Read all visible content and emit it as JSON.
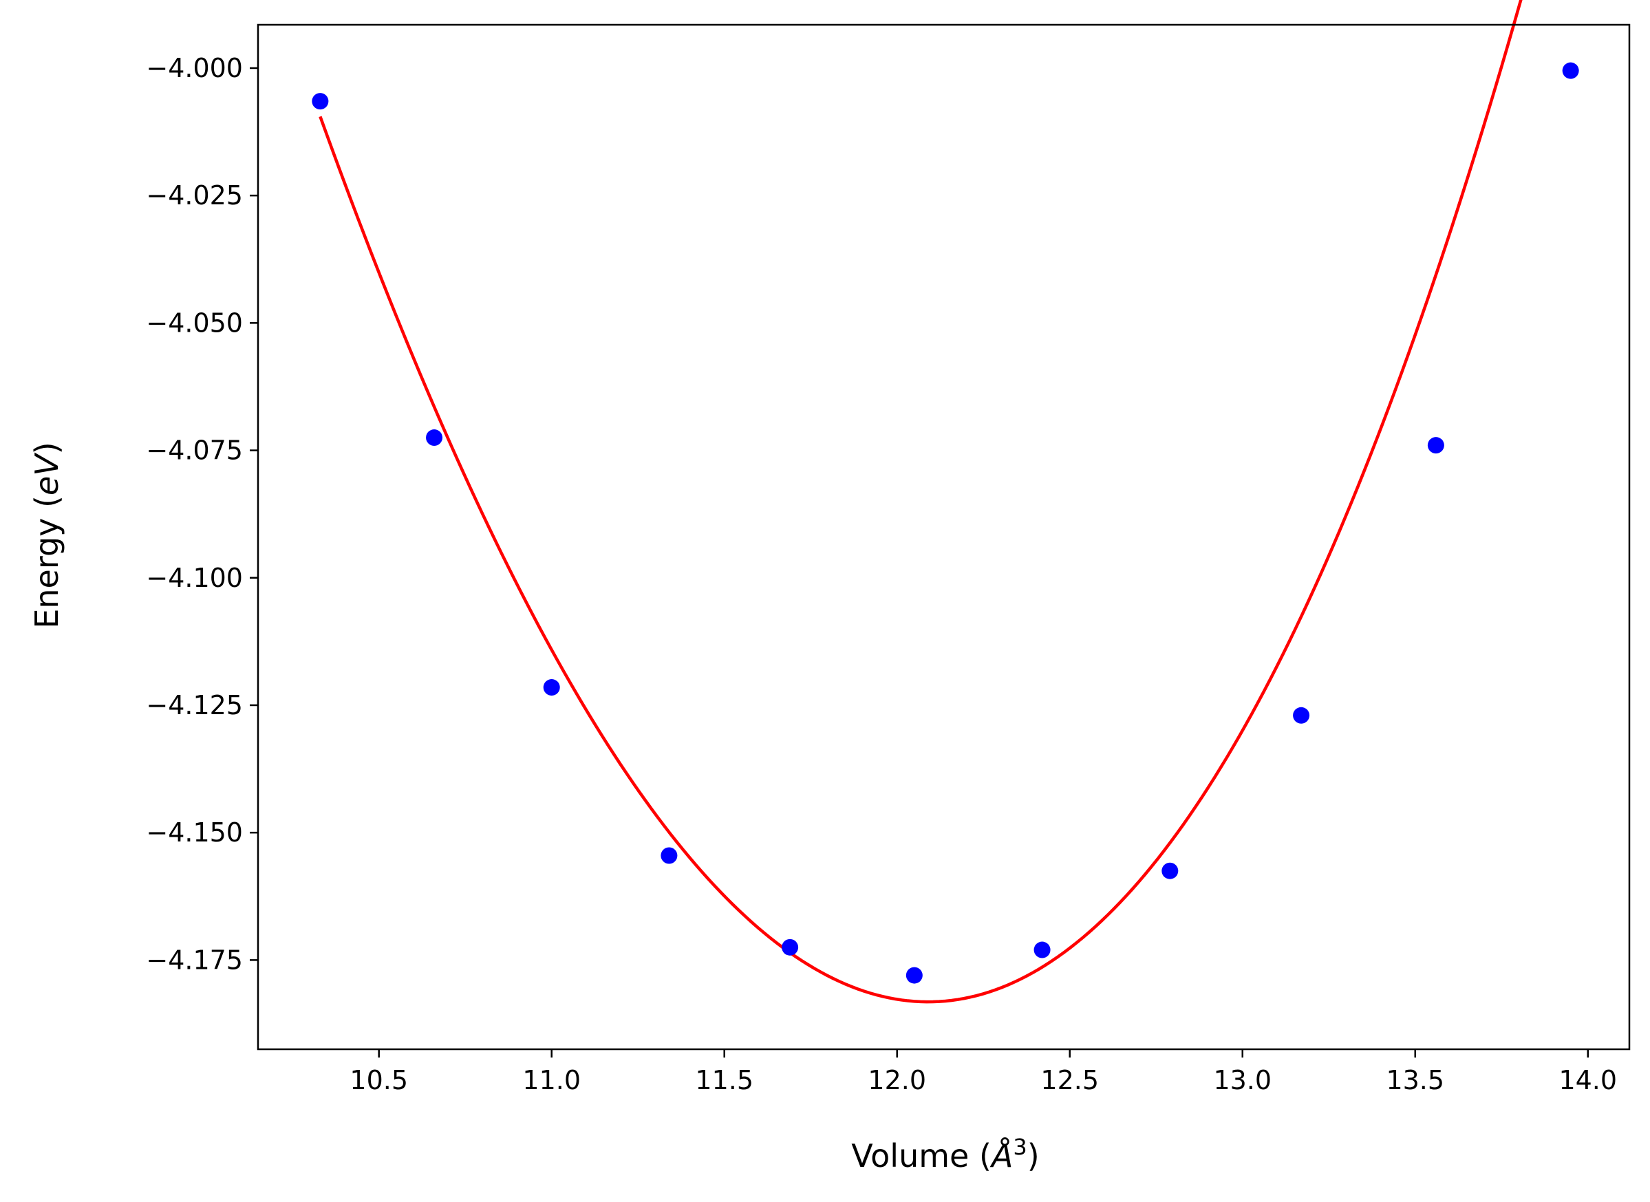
{
  "chart_data": {
    "type": "scatter",
    "title": "",
    "xlabel": "Volume",
    "xlabel_unit_symbol": "Å",
    "xlabel_unit_exponent": "3",
    "ylabel": "Energy",
    "ylabel_unit": "eV",
    "xlim": [
      10.15,
      14.12
    ],
    "ylim": [
      -4.1925,
      -3.9915
    ],
    "x_ticks": [
      10.5,
      11.0,
      11.5,
      12.0,
      12.5,
      13.0,
      13.5,
      14.0
    ],
    "x_tick_labels": [
      "10.5",
      "11.0",
      "11.5",
      "12.0",
      "12.5",
      "13.0",
      "13.5",
      "14.0"
    ],
    "y_ticks": [
      -4.0,
      -4.025,
      -4.05,
      -4.075,
      -4.1,
      -4.125,
      -4.15,
      -4.175
    ],
    "y_tick_labels": [
      "−4.000",
      "−4.025",
      "−4.050",
      "−4.075",
      "−4.100",
      "−4.125",
      "−4.150",
      "−4.175"
    ],
    "grid": false,
    "legend": "none",
    "series": [
      {
        "kind": "points",
        "color": "#0000ff",
        "x": [
          10.33,
          10.66,
          11.0,
          11.34,
          11.69,
          12.05,
          12.42,
          12.79,
          13.17,
          13.56,
          13.95
        ],
        "y": [
          -4.0065,
          -4.0725,
          -4.1215,
          -4.1545,
          -4.1725,
          -4.178,
          -4.173,
          -4.1575,
          -4.127,
          -4.074,
          -4.0005
        ]
      },
      {
        "kind": "fit_curve",
        "color": "#ff0000",
        "x_range": [
          10.33,
          13.95
        ],
        "minimum": {
          "x": 12.09,
          "y": -4.1832
        },
        "anchor": {
          "x": 10.33,
          "y": -4.0095
        },
        "samples": [
          {
            "x": 10.33,
            "y": -4.0095
          },
          {
            "x": 11.0,
            "y": -4.118
          },
          {
            "x": 12.09,
            "y": -4.1832
          },
          {
            "x": 13.0,
            "y": -4.1435
          },
          {
            "x": 13.95,
            "y": -4.0035
          }
        ]
      }
    ]
  }
}
